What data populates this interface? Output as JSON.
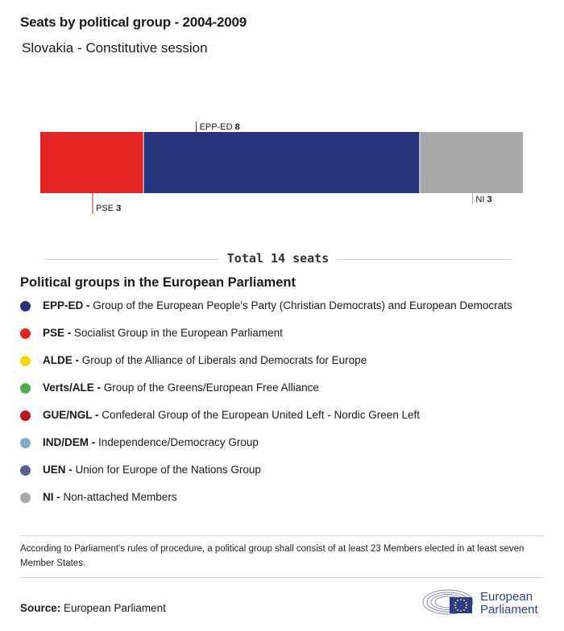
{
  "title": "Seats by political group - 2004-2009",
  "subtitle": "Slovakia - Constitutive session",
  "chart_data": {
    "type": "bar",
    "orientation": "horizontal-stacked",
    "categories": [
      "PSE",
      "EPP-ED",
      "NI"
    ],
    "values": [
      3,
      8,
      3
    ],
    "colors": [
      "#e52421",
      "#26357b",
      "#a8a8a8"
    ],
    "label_positions": [
      "below",
      "above",
      "below"
    ],
    "total": 14
  },
  "total": {
    "prefix": "Total",
    "count": "14",
    "suffix": "seats"
  },
  "legend": {
    "title": "Political groups in the European Parliament",
    "items": [
      {
        "abbr": "EPP-ED",
        "desc": "Group of the European People's Party (Christian Democrats) and European Democrats",
        "color": "#26357b"
      },
      {
        "abbr": "PSE",
        "desc": "Socialist Group in the European Parliament",
        "color": "#e52421"
      },
      {
        "abbr": "ALDE",
        "desc": "Group of the Alliance of Liberals and Democrats for Europe",
        "color": "#f0dc00"
      },
      {
        "abbr": "Verts/ALE",
        "desc": "Group of the Greens/European Free Alliance",
        "color": "#4caf50"
      },
      {
        "abbr": "GUE/NGL",
        "desc": "Confederal Group of the European United Left - Nordic Green Left",
        "color": "#c1141b"
      },
      {
        "abbr": "IND/DEM",
        "desc": "Independence/Democracy Group",
        "color": "#87a9c1"
      },
      {
        "abbr": "UEN",
        "desc": "Union for Europe of the Nations Group",
        "color": "#556190"
      },
      {
        "abbr": "NI",
        "desc": "Non-attached Members",
        "color": "#a8a8a8"
      }
    ]
  },
  "note": "According to Parliament's rules of procedure, a political group shall consist of at least 23 Members elected in at least seven Member States.",
  "source": {
    "label": "Source:",
    "text": "European Parliament"
  },
  "logo": {
    "line1": "European",
    "line2": "Parliament"
  }
}
